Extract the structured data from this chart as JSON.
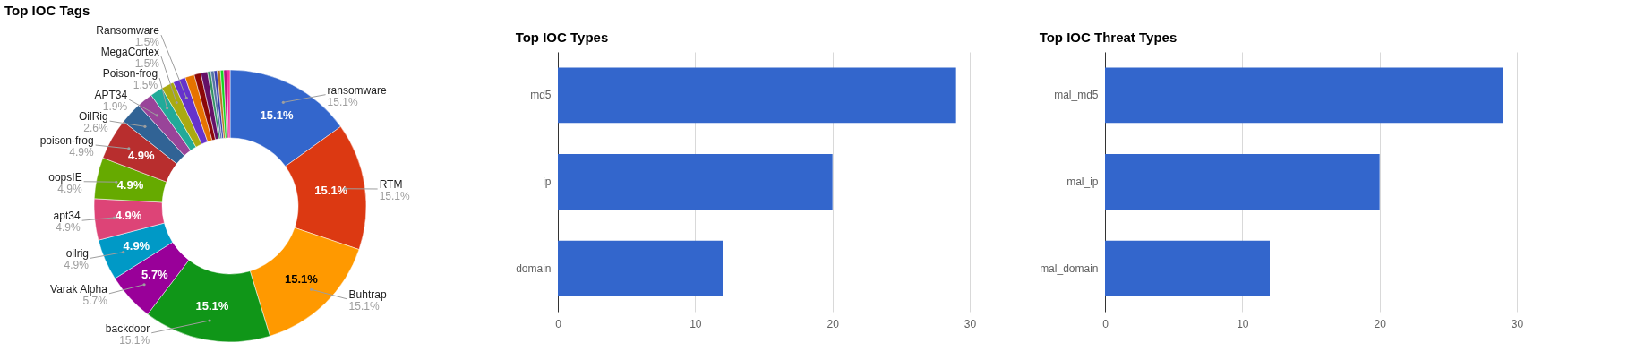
{
  "chart_data": [
    {
      "type": "donut",
      "title": "Top IOC Tags",
      "categories": [
        "ransomware",
        "RTM",
        "Buhtrap",
        "backdoor",
        "Varak Alpha",
        "oilrig",
        "apt34",
        "oopsIE",
        "poison-frog",
        "OilRig",
        "APT34",
        "Poison-frog",
        "MegaCortex",
        "Ransomware",
        null,
        null,
        null,
        null,
        null,
        null,
        null,
        null,
        null,
        null
      ],
      "values": [
        15.1,
        15.1,
        15.1,
        15.1,
        5.7,
        4.9,
        4.9,
        4.9,
        4.9,
        2.6,
        1.9,
        1.5,
        1.5,
        1.5,
        1.1,
        0.8,
        0.8,
        0.38,
        0.38,
        0.38,
        0.38,
        0.38,
        0.38,
        0.38
      ],
      "colors": [
        "#3366cc",
        "#dc3912",
        "#ff9900",
        "#109618",
        "#990099",
        "#0099c6",
        "#dd4477",
        "#66aa00",
        "#b82e2e",
        "#316395",
        "#994499",
        "#22aa99",
        "#aaaa11",
        "#6633cc",
        "#e67300",
        "#8b0707",
        "#651067",
        "#329262",
        "#5574a6",
        "#3b3eac",
        "#b77322",
        "#16d620",
        "#b91383",
        "#f4359e"
      ],
      "value_labels": [
        "15.1%",
        "15.1%",
        "15.1%",
        "15.1%",
        "5.7%",
        "4.9%",
        "4.9%",
        "4.9%",
        "4.9%",
        "2.6%",
        "1.9%",
        "1.5%",
        "1.5%",
        "1.5%",
        null,
        null,
        null,
        null,
        null,
        null,
        null,
        null,
        null,
        null
      ]
    },
    {
      "type": "bar",
      "orientation": "horizontal",
      "title": "Top IOC Types",
      "categories": [
        "md5",
        "ip",
        "domain"
      ],
      "values": [
        29,
        20,
        12
      ],
      "color": "#3366cc",
      "xlim": [
        0,
        30
      ],
      "xticks": [
        0,
        10,
        20,
        30
      ],
      "grid": "x"
    },
    {
      "type": "bar",
      "orientation": "horizontal",
      "title": "Top IOC Threat Types",
      "categories": [
        "mal_md5",
        "mal_ip",
        "mal_domain"
      ],
      "values": [
        29,
        20,
        12
      ],
      "color": "#3366cc",
      "xlim": [
        0,
        30
      ],
      "xticks": [
        0,
        10,
        20,
        30
      ],
      "grid": "x"
    }
  ]
}
